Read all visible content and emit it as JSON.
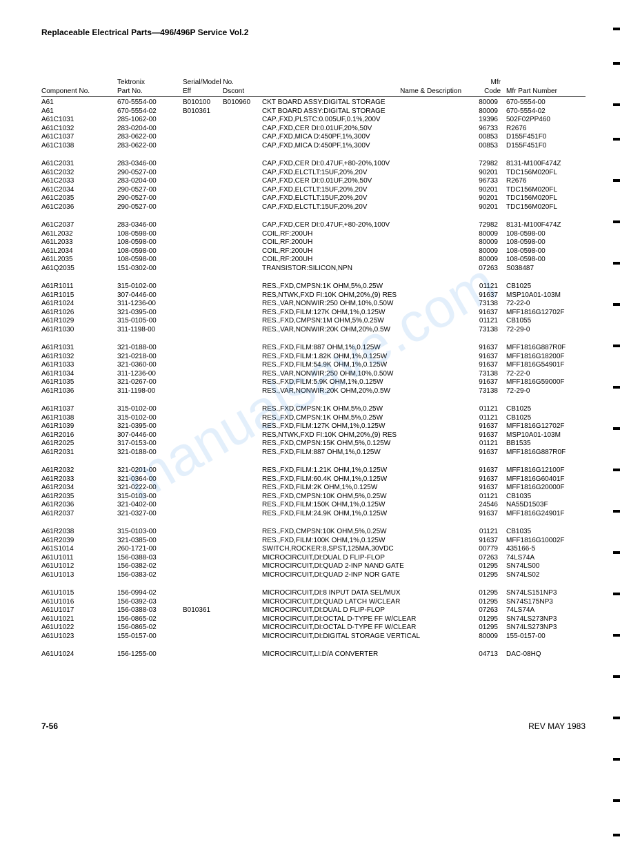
{
  "header": "Replaceable Electrical Parts—496/496P Service Vol.2",
  "columns": {
    "comp": "Component No.",
    "tek": "Tektronix",
    "part": "Part No.",
    "serial": "Serial/Model No.",
    "eff": "Eff",
    "dscont": "Dscont",
    "name": "Name & Description",
    "mfr": "Mfr",
    "code": "Code",
    "mfrpart": "Mfr Part Number"
  },
  "groups": [
    [
      {
        "comp": "A61",
        "part": "670-5554-00",
        "eff": "B010100",
        "dscont": "B010960",
        "name": "CKT BOARD ASSY:DIGITAL STORAGE",
        "mfr": "80009",
        "mfrpart": "670-5554-00"
      },
      {
        "comp": "A61",
        "part": "670-5554-02",
        "eff": "B010361",
        "dscont": "",
        "name": "CKT BOARD ASSY:DIGITAL STORAGE",
        "mfr": "80009",
        "mfrpart": "670-5554-02"
      },
      {
        "comp": "A61C1031",
        "part": "285-1062-00",
        "eff": "",
        "dscont": "",
        "name": "CAP.,FXD,PLSTC:0.005UF,0.1%,200V",
        "mfr": "19396",
        "mfrpart": "502F02PP460"
      },
      {
        "comp": "A61C1032",
        "part": "283-0204-00",
        "eff": "",
        "dscont": "",
        "name": "CAP.,FXD,CER DI:0.01UF,20%,50V",
        "mfr": "96733",
        "mfrpart": "R2676"
      },
      {
        "comp": "A61C1037",
        "part": "283-0622-00",
        "eff": "",
        "dscont": "",
        "name": "CAP.,FXD,MICA D:450PF,1%,300V",
        "mfr": "00853",
        "mfrpart": "D155F451F0"
      },
      {
        "comp": "A61C1038",
        "part": "283-0622-00",
        "eff": "",
        "dscont": "",
        "name": "CAP.,FXD,MICA D:450PF,1%,300V",
        "mfr": "00853",
        "mfrpart": "D155F451F0"
      }
    ],
    [
      {
        "comp": "A61C2031",
        "part": "283-0346-00",
        "eff": "",
        "dscont": "",
        "name": "CAP.,FXD,CER DI:0.47UF,+80-20%,100V",
        "mfr": "72982",
        "mfrpart": "8131-M100F474Z"
      },
      {
        "comp": "A61C2032",
        "part": "290-0527-00",
        "eff": "",
        "dscont": "",
        "name": "CAP.,FXD,ELCTLT:15UF,20%,20V",
        "mfr": "90201",
        "mfrpart": "TDC156M020FL"
      },
      {
        "comp": "A61C2033",
        "part": "283-0204-00",
        "eff": "",
        "dscont": "",
        "name": "CAP.,FXD,CER DI:0.01UF,20%,50V",
        "mfr": "96733",
        "mfrpart": "R2676"
      },
      {
        "comp": "A61C2034",
        "part": "290-0527-00",
        "eff": "",
        "dscont": "",
        "name": "CAP.,FXD,ELCTLT:15UF,20%,20V",
        "mfr": "90201",
        "mfrpart": "TDC156M020FL"
      },
      {
        "comp": "A61C2035",
        "part": "290-0527-00",
        "eff": "",
        "dscont": "",
        "name": "CAP.,FXD,ELCTLT:15UF,20%,20V",
        "mfr": "90201",
        "mfrpart": "TDC156M020FL"
      },
      {
        "comp": "A61C2036",
        "part": "290-0527-00",
        "eff": "",
        "dscont": "",
        "name": "CAP.,FXD,ELCTLT:15UF,20%,20V",
        "mfr": "90201",
        "mfrpart": "TDC156M020FL"
      }
    ],
    [
      {
        "comp": "A61C2037",
        "part": "283-0346-00",
        "eff": "",
        "dscont": "",
        "name": "CAP.,FXD,CER DI:0.47UF,+80-20%,100V",
        "mfr": "72982",
        "mfrpart": "8131-M100F474Z"
      },
      {
        "comp": "A61L2032",
        "part": "108-0598-00",
        "eff": "",
        "dscont": "",
        "name": "COIL,RF:200UH",
        "mfr": "80009",
        "mfrpart": "108-0598-00"
      },
      {
        "comp": "A61L2033",
        "part": "108-0598-00",
        "eff": "",
        "dscont": "",
        "name": "COIL,RF:200UH",
        "mfr": "80009",
        "mfrpart": "108-0598-00"
      },
      {
        "comp": "A61L2034",
        "part": "108-0598-00",
        "eff": "",
        "dscont": "",
        "name": "COIL,RF:200UH",
        "mfr": "80009",
        "mfrpart": "108-0598-00"
      },
      {
        "comp": "A61L2035",
        "part": "108-0598-00",
        "eff": "",
        "dscont": "",
        "name": "COIL,RF:200UH",
        "mfr": "80009",
        "mfrpart": "108-0598-00"
      },
      {
        "comp": "A61Q2035",
        "part": "151-0302-00",
        "eff": "",
        "dscont": "",
        "name": "TRANSISTOR:SILICON,NPN",
        "mfr": "07263",
        "mfrpart": "S038487"
      }
    ],
    [
      {
        "comp": "A61R1011",
        "part": "315-0102-00",
        "eff": "",
        "dscont": "",
        "name": "RES.,FXD,CMPSN:1K OHM,5%,0.25W",
        "mfr": "01121",
        "mfrpart": "CB1025"
      },
      {
        "comp": "A61R1015",
        "part": "307-0446-00",
        "eff": "",
        "dscont": "",
        "name": "RES,NTWK,FXD FI:10K OHM,20%,(9) RES",
        "mfr": "91637",
        "mfrpart": "MSP10A01-103M"
      },
      {
        "comp": "A61R1024",
        "part": "311-1236-00",
        "eff": "",
        "dscont": "",
        "name": "RES.,VAR,NONWIR:250 OHM,10%,0.50W",
        "mfr": "73138",
        "mfrpart": "72-22-0"
      },
      {
        "comp": "A61R1026",
        "part": "321-0395-00",
        "eff": "",
        "dscont": "",
        "name": "RES.,FXD,FILM:127K OHM,1%,0.125W",
        "mfr": "91637",
        "mfrpart": "MFF1816G12702F"
      },
      {
        "comp": "A61R1029",
        "part": "315-0105-00",
        "eff": "",
        "dscont": "",
        "name": "RES.,FXD,CMPSN:1M OHM,5%,0.25W",
        "mfr": "01121",
        "mfrpart": "CB1055"
      },
      {
        "comp": "A61R1030",
        "part": "311-1198-00",
        "eff": "",
        "dscont": "",
        "name": "RES.,VAR,NONWIR:20K OHM,20%,0.5W",
        "mfr": "73138",
        "mfrpart": "72-29-0"
      }
    ],
    [
      {
        "comp": "A61R1031",
        "part": "321-0188-00",
        "eff": "",
        "dscont": "",
        "name": "RES.,FXD,FILM:887 OHM,1%,0.125W",
        "mfr": "91637",
        "mfrpart": "MFF1816G887R0F"
      },
      {
        "comp": "A61R1032",
        "part": "321-0218-00",
        "eff": "",
        "dscont": "",
        "name": "RES.,FXD,FILM:1.82K OHM,1%,0.125W",
        "mfr": "91637",
        "mfrpart": "MFF1816G18200F"
      },
      {
        "comp": "A61R1033",
        "part": "321-0360-00",
        "eff": "",
        "dscont": "",
        "name": "RES.,FXD,FILM:54.9K OHM,1%,0.125W",
        "mfr": "91637",
        "mfrpart": "MFF1816G54901F"
      },
      {
        "comp": "A61R1034",
        "part": "311-1236-00",
        "eff": "",
        "dscont": "",
        "name": "RES.,VAR,NONWIR:250 OHM,10%,0.50W",
        "mfr": "73138",
        "mfrpart": "72-22-0"
      },
      {
        "comp": "A61R1035",
        "part": "321-0267-00",
        "eff": "",
        "dscont": "",
        "name": "RES.,FXD,FILM:5.9K OHM,1%,0.125W",
        "mfr": "91637",
        "mfrpart": "MFF1816G59000F"
      },
      {
        "comp": "A61R1036",
        "part": "311-1198-00",
        "eff": "",
        "dscont": "",
        "name": "RES.,VAR,NONWIR:20K OHM,20%,0.5W",
        "mfr": "73138",
        "mfrpart": "72-29-0"
      }
    ],
    [
      {
        "comp": "A61R1037",
        "part": "315-0102-00",
        "eff": "",
        "dscont": "",
        "name": "RES.,FXD,CMPSN:1K OHM,5%,0.25W",
        "mfr": "01121",
        "mfrpart": "CB1025"
      },
      {
        "comp": "A61R1038",
        "part": "315-0102-00",
        "eff": "",
        "dscont": "",
        "name": "RES.,FXD,CMPSN:1K OHM,5%,0.25W",
        "mfr": "01121",
        "mfrpart": "CB1025"
      },
      {
        "comp": "A61R1039",
        "part": "321-0395-00",
        "eff": "",
        "dscont": "",
        "name": "RES.,FXD,FILM:127K OHM,1%,0.125W",
        "mfr": "91637",
        "mfrpart": "MFF1816G12702F"
      },
      {
        "comp": "A61R2016",
        "part": "307-0446-00",
        "eff": "",
        "dscont": "",
        "name": "RES,NTWK,FXD FI:10K OHM,20%,(9) RES",
        "mfr": "91637",
        "mfrpart": "MSP10A01-103M"
      },
      {
        "comp": "A61R2025",
        "part": "317-0153-00",
        "eff": "",
        "dscont": "",
        "name": "RES.,FXD,CMPSN:15K OHM,5%,0.125W",
        "mfr": "01121",
        "mfrpart": "BB1535"
      },
      {
        "comp": "A61R2031",
        "part": "321-0188-00",
        "eff": "",
        "dscont": "",
        "name": "RES.,FXD,FILM:887 OHM,1%,0.125W",
        "mfr": "91637",
        "mfrpart": "MFF1816G887R0F"
      }
    ],
    [
      {
        "comp": "A61R2032",
        "part": "321-0201-00",
        "eff": "",
        "dscont": "",
        "name": "RES.,FXD,FILM:1.21K OHM,1%,0.125W",
        "mfr": "91637",
        "mfrpart": "MFF1816G12100F"
      },
      {
        "comp": "A61R2033",
        "part": "321-0364-00",
        "eff": "",
        "dscont": "",
        "name": "RES.,FXD,FILM:60.4K OHM,1%,0.125W",
        "mfr": "91637",
        "mfrpart": "MFF1816G60401F"
      },
      {
        "comp": "A61R2034",
        "part": "321-0222-00",
        "eff": "",
        "dscont": "",
        "name": "RES.,FXD,FILM:2K OHM,1%,0.125W",
        "mfr": "91637",
        "mfrpart": "MFF1816G20000F"
      },
      {
        "comp": "A61R2035",
        "part": "315-0103-00",
        "eff": "",
        "dscont": "",
        "name": "RES.,FXD,CMPSN:10K OHM,5%,0.25W",
        "mfr": "01121",
        "mfrpart": "CB1035"
      },
      {
        "comp": "A61R2036",
        "part": "321-0402-00",
        "eff": "",
        "dscont": "",
        "name": "RES.,FXD,FILM:150K OHM,1%,0.125W",
        "mfr": "24546",
        "mfrpart": "NA55D1503F"
      },
      {
        "comp": "A61R2037",
        "part": "321-0327-00",
        "eff": "",
        "dscont": "",
        "name": "RES.,FXD,FILM:24.9K OHM,1%,0.125W",
        "mfr": "91637",
        "mfrpart": "MFF1816G24901F"
      }
    ],
    [
      {
        "comp": "A61R2038",
        "part": "315-0103-00",
        "eff": "",
        "dscont": "",
        "name": "RES.,FXD,CMPSN:10K OHM,5%,0.25W",
        "mfr": "01121",
        "mfrpart": "CB1035"
      },
      {
        "comp": "A61R2039",
        "part": "321-0385-00",
        "eff": "",
        "dscont": "",
        "name": "RES.,FXD,FILM:100K OHM,1%,0.125W",
        "mfr": "91637",
        "mfrpart": "MFF1816G10002F"
      },
      {
        "comp": "A61S1014",
        "part": "260-1721-00",
        "eff": "",
        "dscont": "",
        "name": "SWITCH,ROCKER:8,SPST,125MA,30VDC",
        "mfr": "00779",
        "mfrpart": "435166-5"
      },
      {
        "comp": "A61U1011",
        "part": "156-0388-03",
        "eff": "",
        "dscont": "",
        "name": "MICROCIRCUIT,DI:DUAL D FLIP-FLOP",
        "mfr": "07263",
        "mfrpart": "74LS74A"
      },
      {
        "comp": "A61U1012",
        "part": "156-0382-02",
        "eff": "",
        "dscont": "",
        "name": "MICROCIRCUIT,DI:QUAD 2-INP NAND GATE",
        "mfr": "01295",
        "mfrpart": "SN74LS00"
      },
      {
        "comp": "A61U1013",
        "part": "156-0383-02",
        "eff": "",
        "dscont": "",
        "name": "MICROCIRCUIT,DI:QUAD 2-INP NOR GATE",
        "mfr": "01295",
        "mfrpart": "SN74LS02"
      }
    ],
    [
      {
        "comp": "A61U1015",
        "part": "156-0994-02",
        "eff": "",
        "dscont": "",
        "name": "MICROCIRCUIT,DI:8 INPUT DATA SEL/MUX",
        "mfr": "01295",
        "mfrpart": "SN74LS151NP3"
      },
      {
        "comp": "A61U1016",
        "part": "156-0392-03",
        "eff": "",
        "dscont": "",
        "name": "MICROCIRCUIT,DI:QUAD LATCH W/CLEAR",
        "mfr": "01295",
        "mfrpart": "SN74S175NP3"
      },
      {
        "comp": "A61U1017",
        "part": "156-0388-03",
        "eff": "B010361",
        "dscont": "",
        "name": "MICROCIRCUIT,DI:DUAL D FLIP-FLOP",
        "mfr": "07263",
        "mfrpart": "74LS74A"
      },
      {
        "comp": "A61U1021",
        "part": "156-0865-02",
        "eff": "",
        "dscont": "",
        "name": "MICROCIRCUIT,DI:OCTAL D-TYPE FF W/CLEAR",
        "mfr": "01295",
        "mfrpart": "SN74LS273NP3"
      },
      {
        "comp": "A61U1022",
        "part": "156-0865-02",
        "eff": "",
        "dscont": "",
        "name": "MICROCIRCUIT,DI:OCTAL D-TYPE FF W/CLEAR",
        "mfr": "01295",
        "mfrpart": "SN74LS273NP3"
      },
      {
        "comp": "A61U1023",
        "part": "155-0157-00",
        "eff": "",
        "dscont": "",
        "name": "MICROCIRCUIT,DI:DIGITAL STORAGE VERTICAL",
        "mfr": "80009",
        "mfrpart": "155-0157-00"
      }
    ],
    [
      {
        "comp": "A61U1024",
        "part": "156-1255-00",
        "eff": "",
        "dscont": "",
        "name": "MICROCIRCUIT,LI:D/A CONVERTER",
        "mfr": "04713",
        "mfrpart": "DAC-08HQ"
      }
    ]
  ],
  "footer": {
    "page": "7-56",
    "rev": "REV MAY 1983"
  },
  "watermark": "manualsave.com",
  "colors": {
    "text": "#000000",
    "watermark": "rgba(70, 150, 230, 0.15)",
    "background": "#ffffff"
  }
}
